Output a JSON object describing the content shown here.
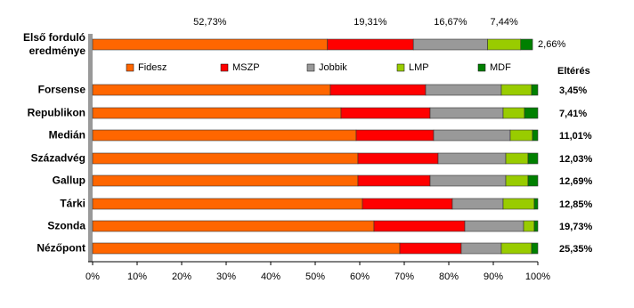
{
  "chart_data": {
    "type": "bar",
    "orientation": "horizontal",
    "stacked": true,
    "categories": [
      "Első forduló eredménye",
      "Forsense",
      "Republikon",
      "Medián",
      "Századvég",
      "Gallup",
      "Tárki",
      "Szonda",
      "Nézőpont"
    ],
    "series": [
      {
        "name": "Fidesz",
        "color": "#ff6600",
        "values": [
          52.73,
          53.4,
          55.8,
          59.2,
          59.6,
          59.6,
          60.6,
          63.2,
          69
        ],
        "value_labels": [
          "52,73%",
          null,
          null,
          null,
          null,
          null,
          null,
          null,
          null
        ]
      },
      {
        "name": "MSZP",
        "color": "#ff0000",
        "values": [
          19.31,
          21.4,
          20,
          17.4,
          18,
          16.2,
          20.2,
          20.4,
          13.8
        ],
        "value_labels": [
          "19,31%",
          null,
          null,
          null,
          null,
          null,
          null,
          null,
          null
        ]
      },
      {
        "name": "Jobbik",
        "color": "#999999",
        "values": [
          16.67,
          17,
          16.4,
          17.2,
          15.2,
          17,
          11.4,
          13.2,
          9
        ],
        "value_labels": [
          "16,67%",
          null,
          null,
          null,
          null,
          null,
          null,
          null,
          null
        ]
      },
      {
        "name": "LMP",
        "color": "#99cc00",
        "values": [
          7.44,
          6.8,
          4.8,
          5,
          5,
          5,
          7,
          2.4,
          6.8
        ],
        "value_labels": [
          "7,44%",
          null,
          null,
          null,
          null,
          null,
          null,
          null,
          null
        ]
      },
      {
        "name": "MDF",
        "color": "#008000",
        "values": [
          2.66,
          1.4,
          3,
          1.2,
          2.2,
          2.2,
          0.8,
          0.8,
          1.4
        ],
        "value_labels": [
          "2,66%",
          null,
          null,
          null,
          null,
          null,
          null,
          null,
          null
        ]
      }
    ],
    "deviation": {
      "title": "Eltérés",
      "values": [
        null,
        3.45,
        7.41,
        11.01,
        12.03,
        12.69,
        12.85,
        19.73,
        25.35
      ],
      "value_labels": [
        null,
        "3,45%",
        "7,41%",
        "11,01%",
        "12,03%",
        "12,69%",
        "12,85%",
        "19,73%",
        "25,35%"
      ]
    },
    "xlim": [
      0,
      100
    ],
    "xticks": [
      {
        "value": 0,
        "label": "0%"
      },
      {
        "value": 10,
        "label": "10%"
      },
      {
        "value": 20,
        "label": "20%"
      },
      {
        "value": 30,
        "label": "30%"
      },
      {
        "value": 40,
        "label": "40%"
      },
      {
        "value": 50,
        "label": "50%"
      },
      {
        "value": 60,
        "label": "60%"
      },
      {
        "value": 70,
        "label": "70%"
      },
      {
        "value": 80,
        "label": "80%"
      },
      {
        "value": 90,
        "label": "90%"
      },
      {
        "value": 100,
        "label": "100%"
      }
    ],
    "legend": "top"
  }
}
